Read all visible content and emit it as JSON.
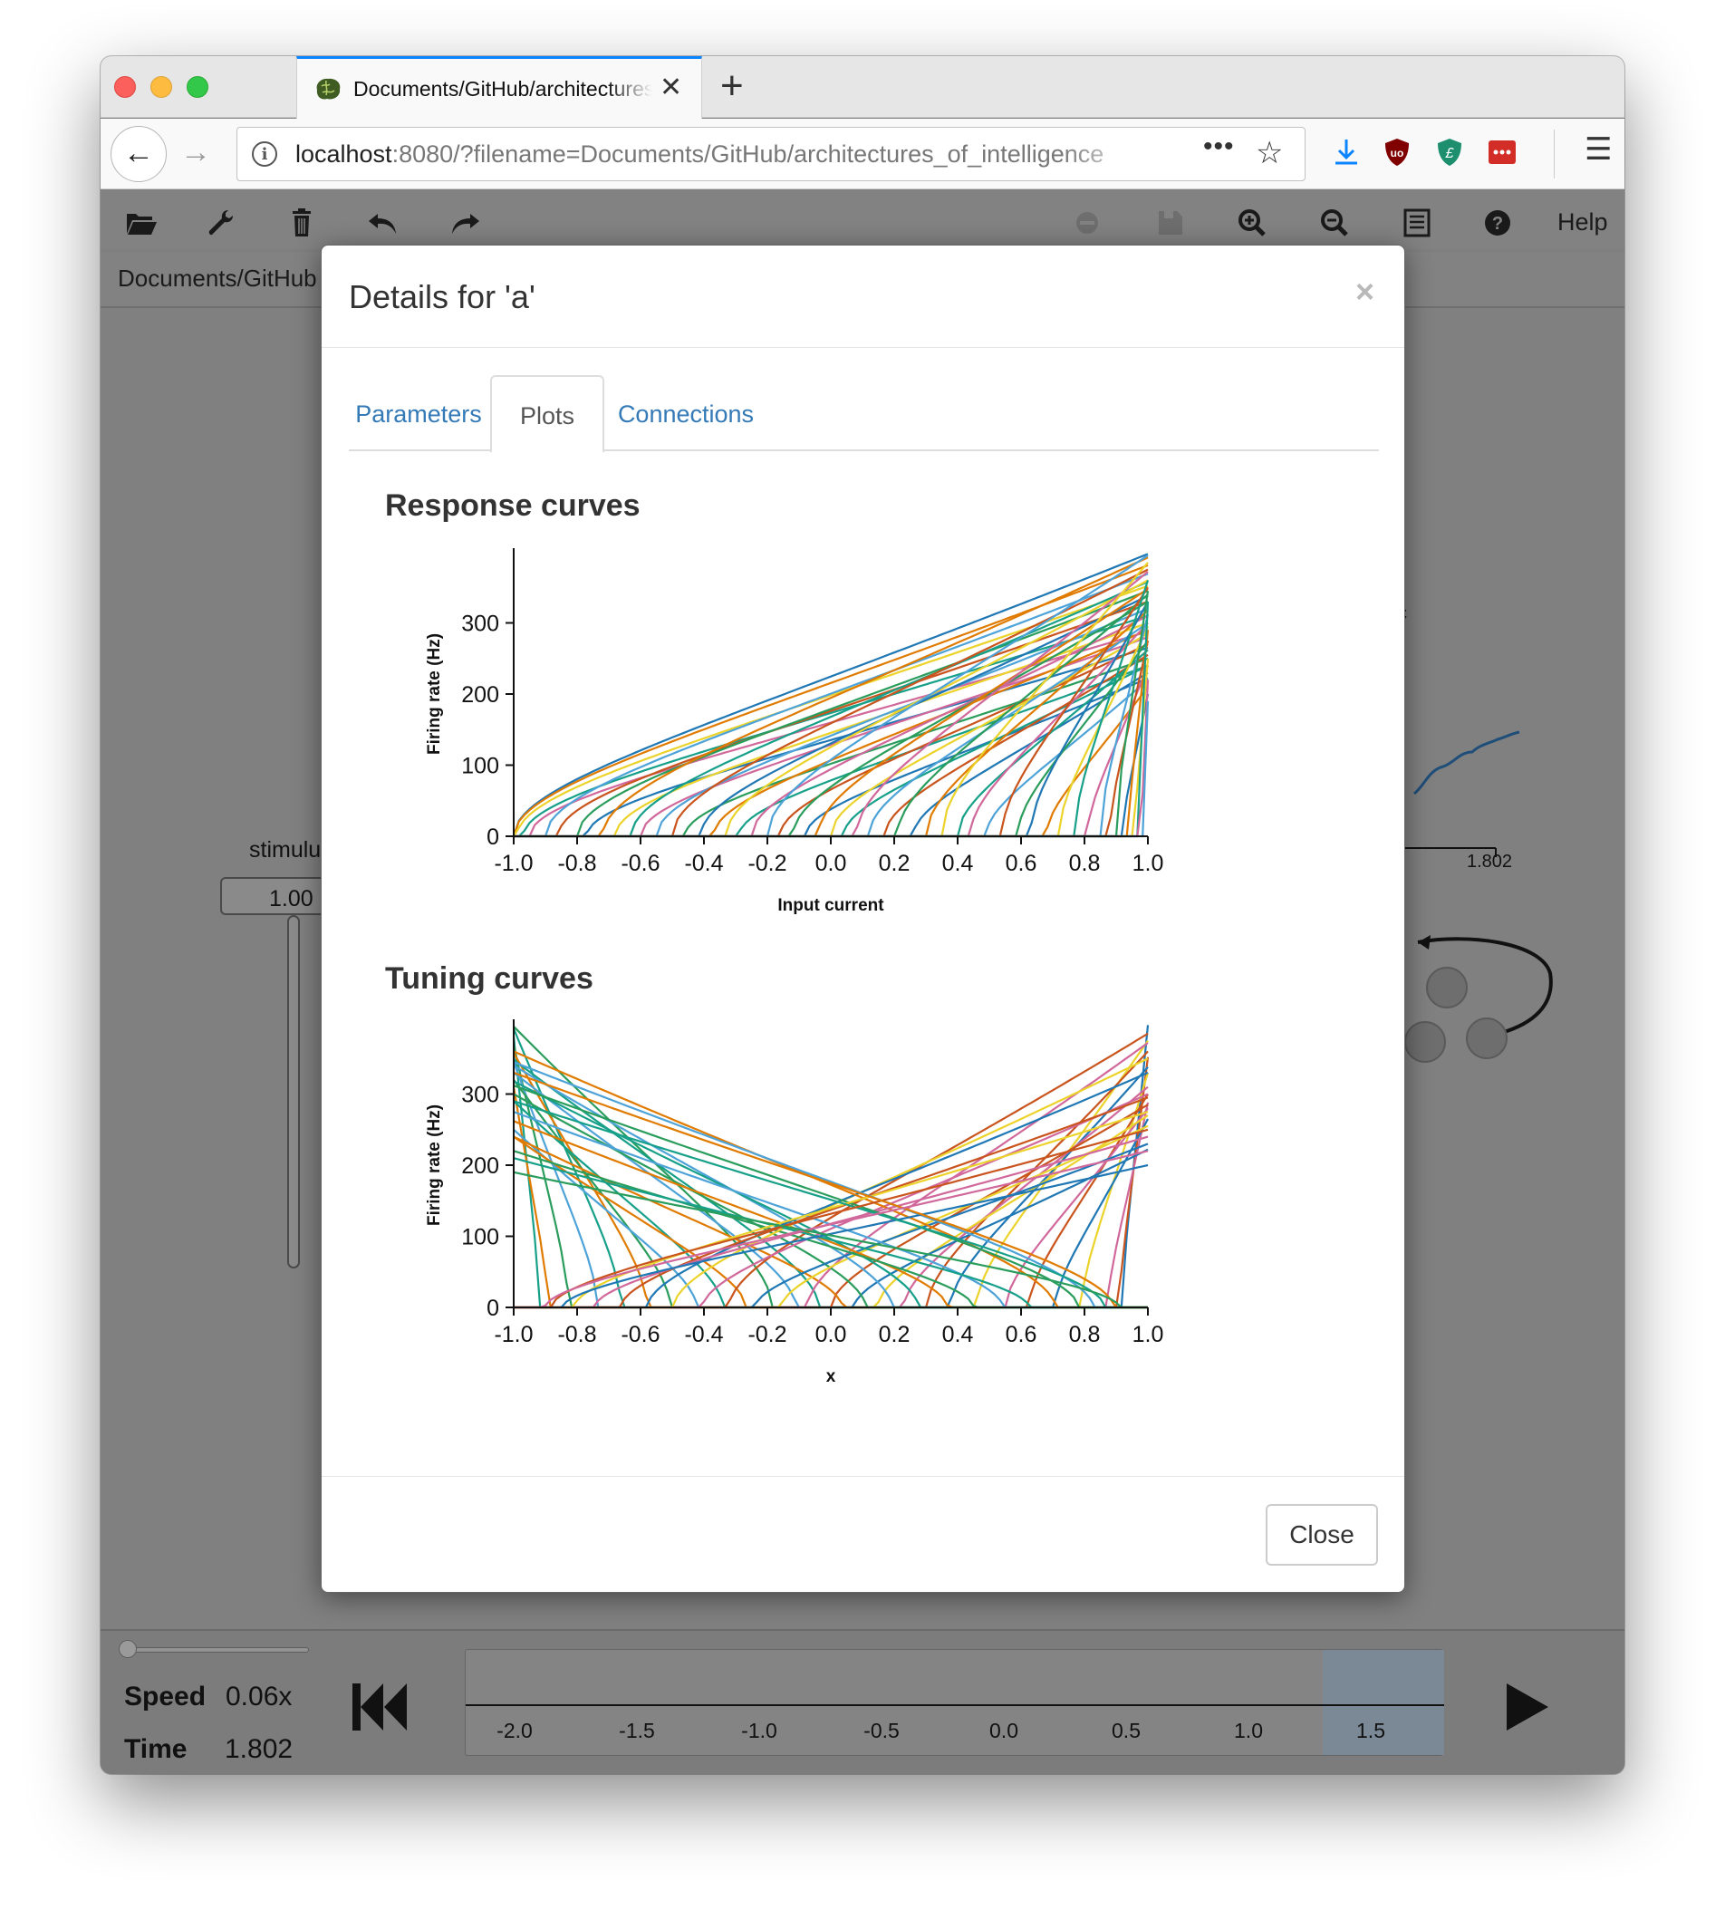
{
  "browser": {
    "tab_title": "Documents/GitHub/architectures_of_intelligence",
    "url_host": "localhost",
    "url_rest": ":8080/?filename=Documents/GitHub/architectures_of_intelligence",
    "menu_icon": "hamburger-icon"
  },
  "app": {
    "help_label": "Help",
    "filename": "Documents/GitHub",
    "background": {
      "stimulus_label": "stimulu",
      "slider_value": "1.00",
      "plot_time_label": "1.802"
    }
  },
  "sim": {
    "speed_label": "Speed",
    "speed_value": "0.06x",
    "time_label": "Time",
    "time_value": "1.802",
    "timeline_ticks": [
      "-2.0",
      "-1.5",
      "-1.0",
      "-0.5",
      "0.0",
      "0.5",
      "1.0",
      "1.5"
    ]
  },
  "modal": {
    "title": "Details for 'a'",
    "close_x": "×",
    "tabs": [
      {
        "label": "Parameters",
        "active": false
      },
      {
        "label": "Plots",
        "active": true
      },
      {
        "label": "Connections",
        "active": false
      }
    ],
    "close_button": "Close"
  },
  "chart_data": [
    {
      "type": "line",
      "title": "Response curves",
      "xlabel": "Input current",
      "ylabel": "Firing rate (Hz)",
      "xlim": [
        -1.0,
        1.0
      ],
      "ylim": [
        0,
        400
      ],
      "xticks": [
        "-1.0",
        "-0.8",
        "-0.6",
        "-0.4",
        "-0.2",
        "0.0",
        "0.2",
        "0.4",
        "0.6",
        "0.8",
        "1.0"
      ],
      "yticks": [
        "0",
        "100",
        "200",
        "300"
      ],
      "series_description": "many neuron response curves, each rising from 0 Hz at a threshold input current up to 200–400 Hz at input 1.0",
      "curves": [
        {
          "threshold": -1.0,
          "max_rate": 397
        },
        {
          "threshold": -1.0,
          "max_rate": 381
        },
        {
          "threshold": -0.99,
          "max_rate": 352
        },
        {
          "threshold": -0.97,
          "max_rate": 310
        },
        {
          "threshold": -0.95,
          "max_rate": 288
        },
        {
          "threshold": -0.9,
          "max_rate": 369
        },
        {
          "threshold": -0.86,
          "max_rate": 330
        },
        {
          "threshold": -0.8,
          "max_rate": 345
        },
        {
          "threshold": -0.77,
          "max_rate": 265
        },
        {
          "threshold": -0.72,
          "max_rate": 392
        },
        {
          "threshold": -0.68,
          "max_rate": 300
        },
        {
          "threshold": -0.63,
          "max_rate": 358
        },
        {
          "threshold": -0.6,
          "max_rate": 280
        },
        {
          "threshold": -0.55,
          "max_rate": 320
        },
        {
          "threshold": -0.5,
          "max_rate": 375
        },
        {
          "threshold": -0.46,
          "max_rate": 250
        },
        {
          "threshold": -0.41,
          "max_rate": 338
        },
        {
          "threshold": -0.37,
          "max_rate": 290
        },
        {
          "threshold": -0.33,
          "max_rate": 360
        },
        {
          "threshold": -0.29,
          "max_rate": 240
        },
        {
          "threshold": -0.25,
          "max_rate": 310
        },
        {
          "threshold": -0.2,
          "max_rate": 395
        },
        {
          "threshold": -0.16,
          "max_rate": 270
        },
        {
          "threshold": -0.12,
          "max_rate": 330
        },
        {
          "threshold": -0.08,
          "max_rate": 222
        },
        {
          "threshold": -0.04,
          "max_rate": 348
        },
        {
          "threshold": 0.0,
          "max_rate": 285
        },
        {
          "threshold": 0.04,
          "max_rate": 240
        },
        {
          "threshold": 0.08,
          "max_rate": 372
        },
        {
          "threshold": 0.12,
          "max_rate": 300
        },
        {
          "threshold": 0.17,
          "max_rate": 255
        },
        {
          "threshold": 0.21,
          "max_rate": 340
        },
        {
          "threshold": 0.26,
          "max_rate": 230
        },
        {
          "threshold": 0.3,
          "max_rate": 318
        },
        {
          "threshold": 0.35,
          "max_rate": 385
        },
        {
          "threshold": 0.4,
          "max_rate": 262
        },
        {
          "threshold": 0.44,
          "max_rate": 300
        },
        {
          "threshold": 0.49,
          "max_rate": 220
        },
        {
          "threshold": 0.54,
          "max_rate": 350
        },
        {
          "threshold": 0.59,
          "max_rate": 275
        },
        {
          "threshold": 0.63,
          "max_rate": 330
        },
        {
          "threshold": 0.68,
          "max_rate": 210
        },
        {
          "threshold": 0.72,
          "max_rate": 295
        },
        {
          "threshold": 0.77,
          "max_rate": 360
        },
        {
          "threshold": 0.81,
          "max_rate": 240
        },
        {
          "threshold": 0.85,
          "max_rate": 312
        },
        {
          "threshold": 0.88,
          "max_rate": 275
        },
        {
          "threshold": 0.9,
          "max_rate": 345
        },
        {
          "threshold": 0.92,
          "max_rate": 200
        },
        {
          "threshold": 0.94,
          "max_rate": 290
        },
        {
          "threshold": 0.96,
          "max_rate": 250
        },
        {
          "threshold": 0.97,
          "max_rate": 330
        },
        {
          "threshold": 0.98,
          "max_rate": 220
        },
        {
          "threshold": 0.99,
          "max_rate": 190
        }
      ]
    },
    {
      "type": "line",
      "title": "Tuning curves",
      "xlabel": "x",
      "ylabel": "Firing rate (Hz)",
      "xlim": [
        -1.0,
        1.0
      ],
      "ylim": [
        0,
        400
      ],
      "xticks": [
        "-1.0",
        "-0.8",
        "-0.6",
        "-0.4",
        "-0.2",
        "0.0",
        "0.2",
        "0.4",
        "0.6",
        "0.8",
        "1.0"
      ],
      "yticks": [
        "0",
        "100",
        "200",
        "300"
      ],
      "series_description": "many neuron tuning curves with positive (rising to the right) or negative (rising to the left) encoders, 0 Hz below threshold and up to ~400 Hz at the preferred edge"
    }
  ]
}
